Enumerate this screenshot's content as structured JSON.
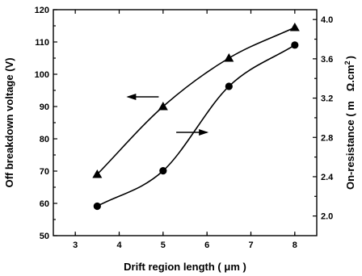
{
  "chart_data": {
    "type": "line",
    "xlabel": "Drift region length ( μm )",
    "ylabel_left": "Off breakdown voltage (V)",
    "ylabel_right_parts": [
      "On-resistance ( m",
      "Ω.cm",
      "2",
      ")"
    ],
    "xlim": [
      2.5,
      8.5
    ],
    "ylim_left": [
      50,
      120
    ],
    "ylim_right": [
      1.8,
      4.1
    ],
    "x_ticks": [
      "3",
      "4",
      "5",
      "6",
      "7",
      "8"
    ],
    "y_left_ticks": [
      "50",
      "60",
      "70",
      "80",
      "90",
      "100",
      "110",
      "120"
    ],
    "y_right_ticks": [
      "2.0",
      "2.4",
      "2.8",
      "3.2",
      "3.6",
      "4.0"
    ],
    "grid": false,
    "series": [
      {
        "axis": "left",
        "marker": "triangle",
        "x": [
          3.5,
          5.0,
          6.5,
          8.0
        ],
        "values": [
          69,
          90,
          105,
          114.5
        ]
      },
      {
        "axis": "right",
        "marker": "circle",
        "x": [
          3.5,
          5.0,
          6.5,
          8.0
        ],
        "values": [
          2.1,
          2.46,
          3.32,
          3.74
        ]
      }
    ],
    "annotations": [
      {
        "type": "arrow",
        "direction": "left",
        "points_to": "left-axis",
        "x": [
          4.9,
          4.2
        ],
        "y_left": 93
      },
      {
        "type": "arrow",
        "direction": "right",
        "points_to": "right-axis",
        "x": [
          5.3,
          6.0
        ],
        "y_left": 82
      }
    ]
  }
}
